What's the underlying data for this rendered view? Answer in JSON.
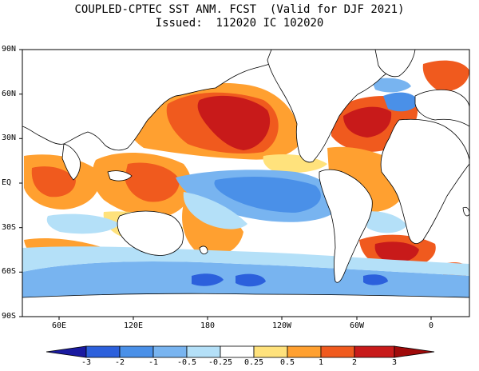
{
  "title": {
    "line1": "COUPLED-CPTEC SST ANM. FCST  (Valid for DJF 2021)",
    "line2": "Issued:  112020 IC 102020"
  },
  "axes": {
    "lat_labels": [
      "90N",
      "60N",
      "30N",
      "EQ",
      "30S",
      "60S",
      "90S"
    ],
    "lon_labels": [
      "60E",
      "120E",
      "180",
      "120W",
      "60W",
      "0"
    ]
  },
  "colorbar": {
    "labels": [
      "-3",
      "-2",
      "-1",
      "-0.5",
      "-0.25",
      "0.25",
      "0.5",
      "1",
      "2",
      "3"
    ],
    "colors": [
      "#1a1aa0",
      "#2c60dc",
      "#4a90e8",
      "#78b4f0",
      "#b4e0f8",
      "#ffffff",
      "#ffe27c",
      "#ffa030",
      "#f05a1e",
      "#c81a1a",
      "#a00a0a"
    ]
  },
  "colors": {
    "land": "#ffffff",
    "neutral": "#ffffff",
    "strong_cold": "#1a2ad0"
  }
}
